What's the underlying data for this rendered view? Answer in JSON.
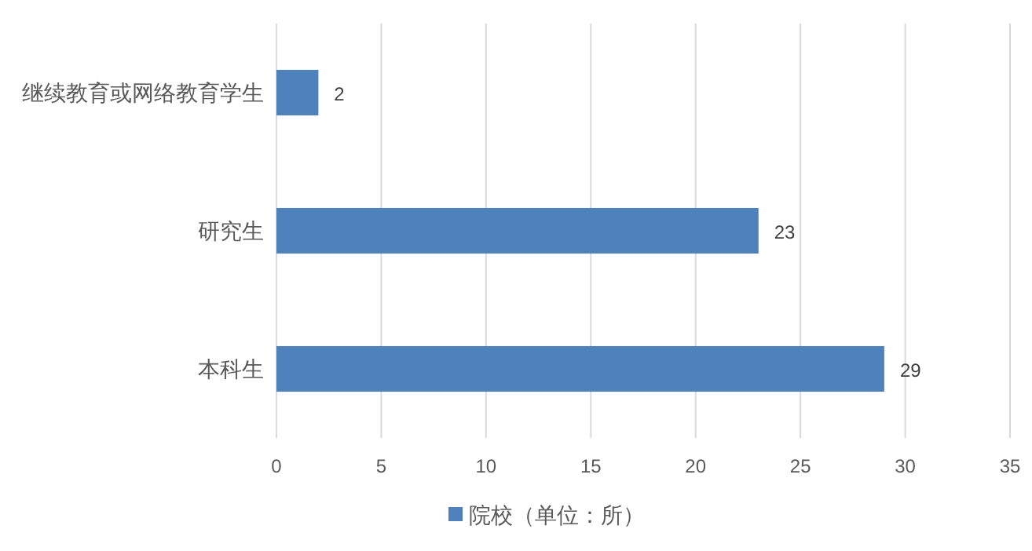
{
  "chart_data": {
    "type": "bar",
    "orientation": "horizontal",
    "categories": [
      "继续教育或网络教育学生",
      "研究生",
      "本科生"
    ],
    "series": [
      {
        "name": "院校（单位：所）",
        "color": "#4f81bd",
        "values": [
          2,
          23,
          29
        ]
      }
    ],
    "xlim": [
      0,
      35
    ],
    "xticks": [
      0,
      5,
      10,
      15,
      20,
      25,
      30,
      35
    ],
    "grid": "x",
    "data_labels": true,
    "legend": "bottom"
  }
}
